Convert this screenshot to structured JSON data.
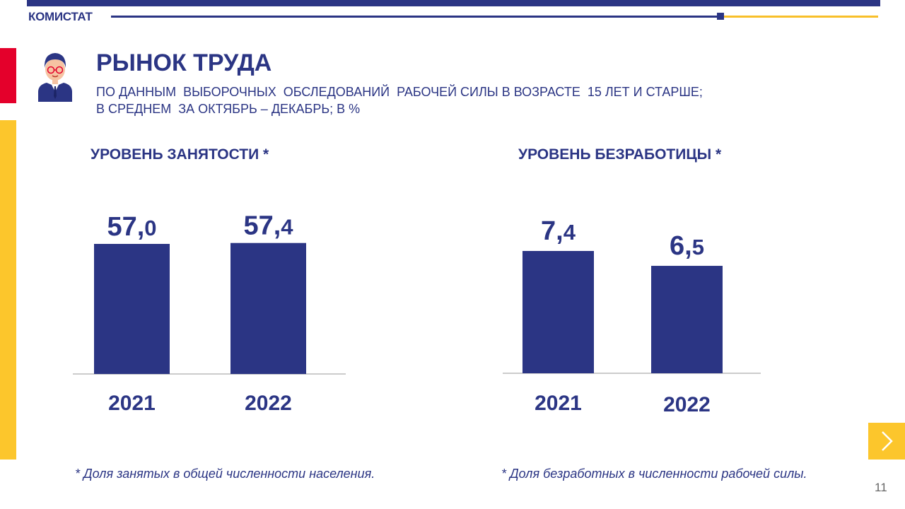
{
  "header": {
    "brand": "КОМИСТАТ"
  },
  "slide": {
    "title": "РЫНОК ТРУДА",
    "subtitle_line1": "ПО ДАННЫМ  ВЫБОРОЧНЫХ  ОБСЛЕДОВАНИЙ  РАБОЧЕЙ СИЛЫ В ВОЗРАСТЕ  15 ЛЕТ И СТАРШЕ;",
    "subtitle_line2": "В СРЕДНЕМ  ЗА ОКТЯБРЬ – ДЕКАБРЬ; В %",
    "page_number": "11"
  },
  "colors": {
    "bar": "#2b3584",
    "accent_yellow": "#fcc62c",
    "accent_red": "#e4002b"
  },
  "chart_data": [
    {
      "type": "bar",
      "title": "УРОВЕНЬ ЗАНЯТОСТИ *",
      "categories": [
        "2021",
        "2022"
      ],
      "values": [
        57.0,
        57.4
      ],
      "labels": [
        {
          "int": "57,",
          "dec": "0"
        },
        {
          "int": "57,",
          "dec": "4"
        }
      ],
      "footnote": "* Доля занятых в общей численности населения."
    },
    {
      "type": "bar",
      "title": "УРОВЕНЬ БЕЗРАБОТИЦЫ *",
      "categories": [
        "2021",
        "2022"
      ],
      "values": [
        7.4,
        6.5
      ],
      "labels": [
        {
          "int": "7,",
          "dec": "4"
        },
        {
          "int": "6,",
          "dec": "5"
        }
      ],
      "footnote": "* Доля безработных в численности рабочей силы."
    }
  ]
}
